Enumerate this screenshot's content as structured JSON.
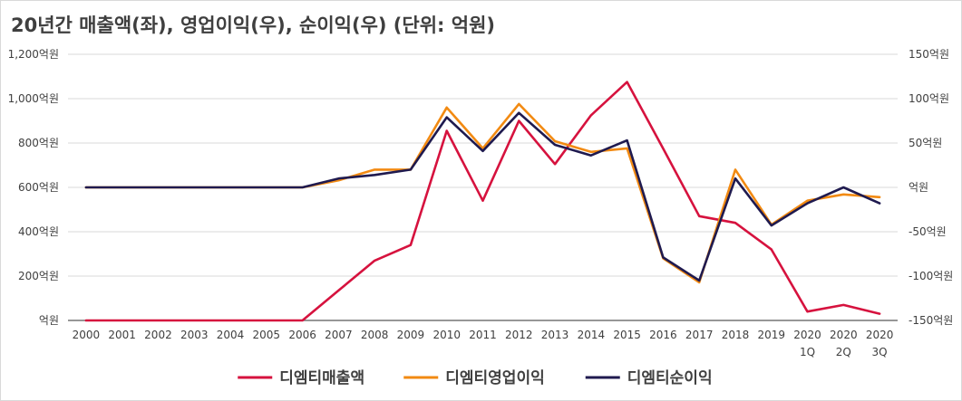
{
  "chart_data": {
    "type": "line",
    "title": "20년간 매출액(좌), 영업이익(우), 순이익(우) (단위: 억원)",
    "categories": [
      [
        "2000"
      ],
      [
        "2001"
      ],
      [
        "2002"
      ],
      [
        "2003"
      ],
      [
        "2004"
      ],
      [
        "2005"
      ],
      [
        "2006"
      ],
      [
        "2007"
      ],
      [
        "2008"
      ],
      [
        "2009"
      ],
      [
        "2010"
      ],
      [
        "2011"
      ],
      [
        "2012"
      ],
      [
        "2013"
      ],
      [
        "2014"
      ],
      [
        "2015"
      ],
      [
        "2016"
      ],
      [
        "2017"
      ],
      [
        "2018"
      ],
      [
        "2019"
      ],
      [
        "2020",
        "1Q"
      ],
      [
        "2020",
        "2Q"
      ],
      [
        "2020",
        "3Q"
      ]
    ],
    "left_axis": {
      "ylim": [
        0,
        1200
      ],
      "ticks": [
        0,
        200,
        400,
        600,
        800,
        1000,
        1200
      ],
      "tick_labels": [
        "억원",
        "200억원",
        "400억원",
        "600억원",
        "800억원",
        "1,000억원",
        "1,200억원"
      ]
    },
    "right_axis": {
      "ylim": [
        -150,
        150
      ],
      "ticks": [
        -150,
        -100,
        -50,
        0,
        50,
        100,
        150
      ],
      "tick_labels": [
        "-150억원",
        "-100억원",
        "-50억원",
        "억원",
        "50억원",
        "100억원",
        "150억원"
      ]
    },
    "grid": true,
    "legend_position": "bottom",
    "series": [
      {
        "name": "디엠티매출액",
        "axis": "left",
        "color": "#d6123e",
        "values": [
          0,
          0,
          0,
          0,
          0,
          0,
          0,
          135,
          270,
          340,
          855,
          540,
          900,
          705,
          925,
          1075,
          775,
          470,
          440,
          320,
          40,
          70,
          30
        ]
      },
      {
        "name": "디엠티영업이익",
        "axis": "right",
        "color": "#f28a12",
        "values": [
          0,
          0,
          0,
          0,
          0,
          0,
          0,
          8,
          20,
          20,
          90,
          44,
          94,
          52,
          40,
          44,
          -80,
          -107,
          20,
          -42,
          -15,
          -8,
          -11
        ]
      },
      {
        "name": "디엠티순이익",
        "axis": "right",
        "color": "#1f1a4f",
        "values": [
          0,
          0,
          0,
          0,
          0,
          0,
          0,
          10,
          14,
          20,
          79,
          41,
          84,
          48,
          36,
          53,
          -79,
          -105,
          10,
          -43,
          -18,
          0,
          -18
        ]
      }
    ]
  }
}
